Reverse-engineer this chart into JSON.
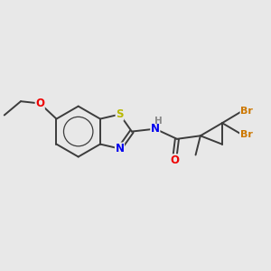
{
  "background_color": "#e8e8e8",
  "bond_color": "#3c3c3c",
  "atom_colors": {
    "S": "#b8b800",
    "N": "#0000ee",
    "O": "#ee0000",
    "H": "#888888",
    "Br": "#cc7700",
    "C": "#3c3c3c"
  },
  "figsize": [
    3.0,
    3.0
  ],
  "dpi": 100,
  "lw": 1.4,
  "fontsize": 8.5
}
